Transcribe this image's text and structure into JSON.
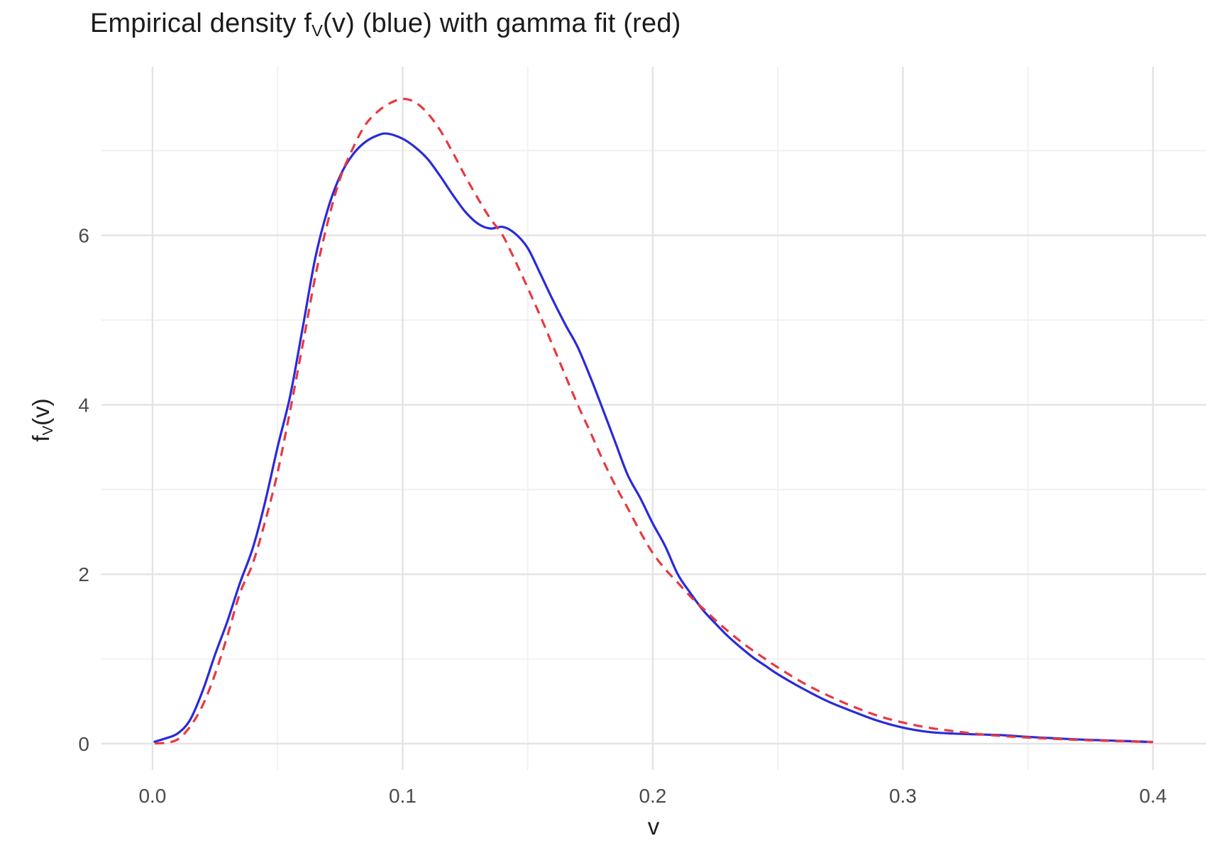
{
  "title": {
    "prefix": "Empirical density f",
    "sub": "V",
    "suffix": "(v) (blue) with gamma fit (red)"
  },
  "axes": {
    "x_label": "v",
    "y_label": {
      "prefix": "f",
      "sub": "V",
      "suffix": "(v)"
    },
    "x_tick_labels": [
      "0.0",
      "0.1",
      "0.2",
      "0.3",
      "0.4"
    ],
    "y_tick_labels": [
      "0",
      "2",
      "4",
      "6"
    ],
    "tick_text_color": "#4a4a4a",
    "grid_major_color": "#e3e3e6",
    "grid_minor_color": "#f0f0f3"
  },
  "chart_data": {
    "type": "line",
    "title": "Empirical density f_V(v) (blue) with gamma fit (red)",
    "xlabel": "v",
    "ylabel": "f_V(v)",
    "xlim": [
      -0.0204,
      0.4213
    ],
    "ylim": [
      -0.31,
      7.99
    ],
    "x_major_ticks": [
      0.0,
      0.1,
      0.2,
      0.3,
      0.4
    ],
    "y_major_ticks": [
      0,
      2,
      4,
      6
    ],
    "grid": "major+minor, light gray on white, no axis lines, no tick marks",
    "legend": "none (colors described in title)",
    "series": [
      {
        "name": "empirical_density_blue",
        "color": "#2a2ad9",
        "style": "solid",
        "peak": {
          "v": 0.094,
          "f": 7.2
        },
        "shoulder": {
          "v": 0.137,
          "f": 6.1
        },
        "x": [
          0.0005,
          0.005,
          0.01,
          0.015,
          0.02,
          0.025,
          0.03,
          0.035,
          0.04,
          0.045,
          0.05,
          0.055,
          0.06,
          0.065,
          0.07,
          0.075,
          0.08,
          0.085,
          0.09,
          0.094,
          0.1,
          0.105,
          0.11,
          0.115,
          0.12,
          0.125,
          0.13,
          0.135,
          0.14,
          0.145,
          0.15,
          0.155,
          0.16,
          0.165,
          0.17,
          0.175,
          0.18,
          0.185,
          0.19,
          0.195,
          0.2,
          0.205,
          0.21,
          0.215,
          0.22,
          0.225,
          0.23,
          0.235,
          0.24,
          0.245,
          0.25,
          0.26,
          0.27,
          0.28,
          0.29,
          0.3,
          0.31,
          0.32,
          0.33,
          0.34,
          0.35,
          0.36,
          0.37,
          0.38,
          0.39,
          0.4
        ],
        "y": [
          0.02,
          0.06,
          0.12,
          0.28,
          0.62,
          1.05,
          1.45,
          1.9,
          2.3,
          2.85,
          3.5,
          4.1,
          4.9,
          5.72,
          6.3,
          6.7,
          6.95,
          7.1,
          7.18,
          7.2,
          7.14,
          7.04,
          6.9,
          6.7,
          6.48,
          6.28,
          6.14,
          6.08,
          6.1,
          6.02,
          5.85,
          5.55,
          5.24,
          4.95,
          4.68,
          4.33,
          3.95,
          3.56,
          3.17,
          2.9,
          2.6,
          2.33,
          2.0,
          1.78,
          1.58,
          1.42,
          1.27,
          1.14,
          1.02,
          0.92,
          0.82,
          0.65,
          0.5,
          0.38,
          0.27,
          0.19,
          0.14,
          0.12,
          0.11,
          0.1,
          0.08,
          0.065,
          0.05,
          0.04,
          0.03,
          0.02
        ]
      },
      {
        "name": "gamma_fit_red",
        "color": "#e63a40",
        "style": "dashed",
        "peak": {
          "v": 0.1,
          "f": 7.61
        },
        "x": [
          0.001,
          0.005,
          0.01,
          0.015,
          0.02,
          0.025,
          0.03,
          0.035,
          0.04,
          0.045,
          0.05,
          0.055,
          0.06,
          0.065,
          0.07,
          0.075,
          0.08,
          0.085,
          0.09,
          0.095,
          0.1,
          0.105,
          0.11,
          0.115,
          0.12,
          0.125,
          0.13,
          0.135,
          0.14,
          0.145,
          0.15,
          0.155,
          0.16,
          0.165,
          0.17,
          0.175,
          0.18,
          0.185,
          0.19,
          0.195,
          0.2,
          0.205,
          0.21,
          0.215,
          0.22,
          0.225,
          0.23,
          0.235,
          0.24,
          0.245,
          0.25,
          0.26,
          0.27,
          0.28,
          0.29,
          0.3,
          0.31,
          0.32,
          0.33,
          0.34,
          0.35,
          0.36,
          0.37,
          0.38,
          0.39,
          0.4
        ],
        "y": [
          0.003,
          0.01,
          0.05,
          0.2,
          0.45,
          0.82,
          1.28,
          1.78,
          2.12,
          2.62,
          3.2,
          3.93,
          4.7,
          5.5,
          6.15,
          6.67,
          7.02,
          7.3,
          7.46,
          7.56,
          7.61,
          7.57,
          7.44,
          7.24,
          6.98,
          6.7,
          6.44,
          6.2,
          6.0,
          5.7,
          5.38,
          5.05,
          4.7,
          4.35,
          4.0,
          3.68,
          3.35,
          3.05,
          2.78,
          2.5,
          2.25,
          2.06,
          1.9,
          1.74,
          1.6,
          1.46,
          1.33,
          1.21,
          1.1,
          1.0,
          0.9,
          0.72,
          0.57,
          0.44,
          0.33,
          0.25,
          0.19,
          0.15,
          0.115,
          0.09,
          0.072,
          0.058,
          0.045,
          0.035,
          0.027,
          0.02
        ]
      }
    ]
  }
}
